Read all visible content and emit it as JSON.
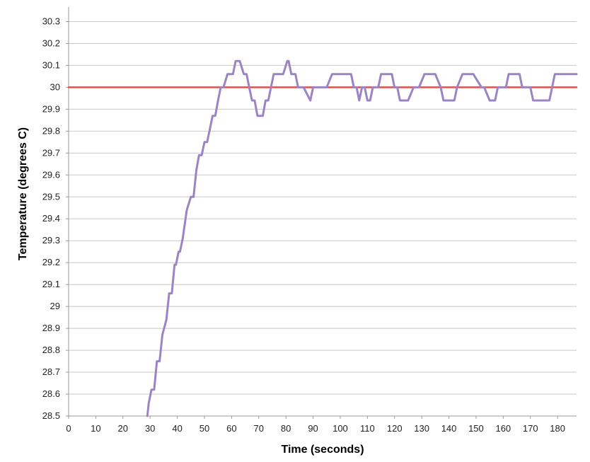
{
  "chart_data": {
    "type": "line",
    "title": "",
    "xlabel": "Time (seconds)",
    "ylabel": "Temperature (degrees C)",
    "xlim": [
      0,
      187
    ],
    "ylim": [
      28.5,
      30.35
    ],
    "x_ticks": [
      "0",
      "10",
      "20",
      "30",
      "40",
      "50",
      "60",
      "70",
      "80",
      "90",
      "100",
      "110",
      "120",
      "130",
      "140",
      "150",
      "160",
      "170",
      "180"
    ],
    "y_ticks": [
      "28.5",
      "28.6",
      "28.7",
      "28.8",
      "28.9",
      "29",
      "29.1",
      "29.2",
      "29.3",
      "29.4",
      "29.5",
      "29.6",
      "29.7",
      "29.8",
      "29.9",
      "30",
      "30.1",
      "30.2",
      "30.3"
    ],
    "grid": "horizontal",
    "colors": {
      "temperature": "#9b84c6",
      "setpoint": "#d9534f"
    },
    "series": [
      {
        "key": "setpoint",
        "x": [
          0,
          187
        ],
        "y": [
          30.0,
          30.0
        ]
      },
      {
        "key": "temperature",
        "x": [
          29,
          29.5,
          30.5,
          31.5,
          32.5,
          33.5,
          34.5,
          36,
          37,
          38,
          39,
          39.5,
          40.5,
          41,
          42,
          43.5,
          45,
          46,
          47,
          48,
          49,
          50,
          51,
          52,
          53,
          54,
          55,
          56,
          57,
          58.5,
          59.5,
          60.5,
          61.5,
          62,
          63,
          64.5,
          65.5,
          66.5,
          67.5,
          68.5,
          69.5,
          70.5,
          71.5,
          72.5,
          73.5,
          75.5,
          77,
          79,
          80.5,
          81,
          82,
          82.5,
          83.5,
          84.5,
          85.5,
          86.5,
          89,
          90,
          91,
          92,
          95,
          97,
          99,
          100,
          104,
          105,
          106,
          107,
          108,
          109,
          110,
          111,
          112,
          114,
          115,
          116,
          117,
          119,
          120,
          121,
          122,
          124,
          125,
          127,
          129,
          131,
          133,
          134,
          135,
          137,
          138,
          141,
          142,
          143,
          145,
          148,
          149,
          152,
          153,
          155,
          157,
          158,
          161,
          162,
          164,
          166,
          167,
          170,
          171,
          173,
          177,
          179,
          181,
          187
        ],
        "y": [
          28.5,
          28.56,
          28.62,
          28.62,
          28.75,
          28.75,
          28.87,
          28.94,
          29.06,
          29.06,
          29.19,
          29.19,
          29.25,
          29.25,
          29.31,
          29.44,
          29.5,
          29.5,
          29.62,
          29.69,
          29.69,
          29.75,
          29.75,
          29.81,
          29.87,
          29.87,
          29.94,
          30.0,
          30.0,
          30.06,
          30.06,
          30.06,
          30.12,
          30.12,
          30.12,
          30.06,
          30.06,
          30.0,
          29.94,
          29.94,
          29.87,
          29.87,
          29.87,
          29.94,
          29.94,
          30.06,
          30.06,
          30.06,
          30.12,
          30.12,
          30.06,
          30.06,
          30.06,
          30.0,
          30.0,
          30.0,
          29.94,
          30.0,
          30.0,
          30.0,
          30.0,
          30.06,
          30.06,
          30.06,
          30.06,
          30.0,
          30.0,
          29.94,
          30.0,
          30.0,
          29.94,
          29.94,
          30.0,
          30.0,
          30.06,
          30.06,
          30.06,
          30.06,
          30.0,
          30.0,
          29.94,
          29.94,
          29.94,
          30.0,
          30.0,
          30.06,
          30.06,
          30.06,
          30.06,
          30.0,
          29.94,
          29.94,
          29.94,
          30.0,
          30.06,
          30.06,
          30.06,
          30.0,
          30.0,
          29.94,
          29.94,
          30.0,
          30.0,
          30.06,
          30.06,
          30.06,
          30.0,
          30.0,
          29.94,
          29.94,
          29.94,
          30.06,
          30.06,
          30.06
        ]
      }
    ]
  }
}
